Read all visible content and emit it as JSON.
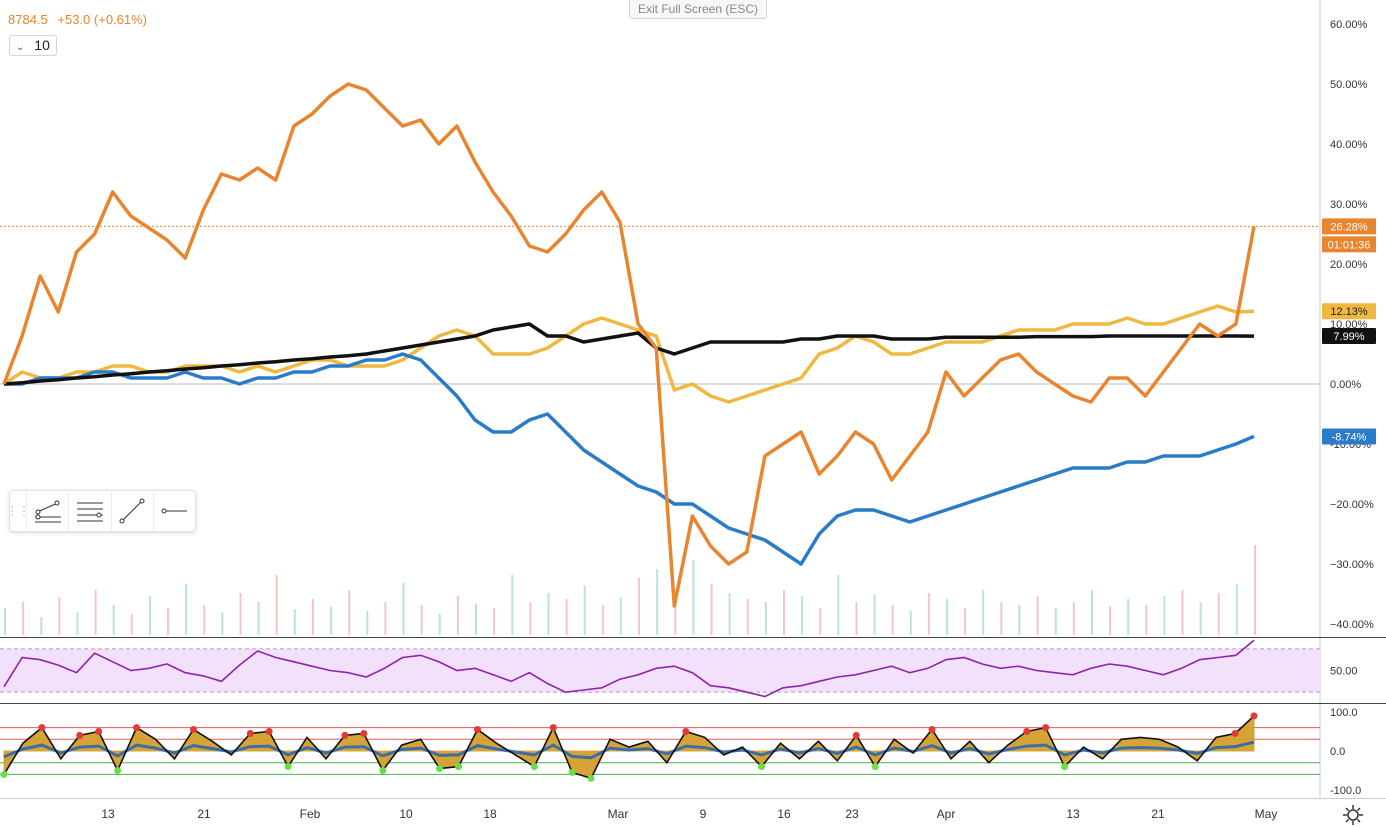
{
  "header": {
    "price": "8784.5",
    "change": "+53.0 (+0.61%)",
    "interval": "10",
    "exit_fullscreen": "Exit Full Screen (ESC)"
  },
  "toolbar": {
    "tools": [
      "multi-line-tool-icon",
      "parallel-lines-icon",
      "trend-line-icon",
      "horizontal-ray-icon"
    ]
  },
  "colors": {
    "orange": "#e8852e",
    "yellow": "#f0b840",
    "blue": "#2a7bc8",
    "black": "#111111",
    "rsi": "#8e24aa",
    "osc_fill": "#d4a02c",
    "osc_blue": "#3b6ea5"
  },
  "chart_data": [
    {
      "type": "line",
      "title": "",
      "x_tick_labels": [
        "13",
        "21",
        "Feb",
        "10",
        "18",
        "Mar",
        "9",
        "16",
        "23",
        "Apr",
        "13",
        "21",
        "May"
      ],
      "y_tick_labels": [
        "60.00%",
        "50.00%",
        "40.00%",
        "30.00%",
        "20.00%",
        "10.00%",
        "0.00%",
        "-10.00%",
        "−20.00%",
        "−30.00%",
        "−40.00%"
      ],
      "ylim": [
        -40,
        60
      ],
      "series": [
        {
          "name": "",
          "color": "orange",
          "last_label": "26.28%",
          "values": [
            0,
            8,
            18,
            12,
            22,
            25,
            32,
            28,
            26,
            24,
            21,
            29,
            35,
            34,
            36,
            34,
            43,
            45,
            48,
            50,
            49,
            46,
            43,
            44,
            40,
            43,
            37,
            32,
            28,
            23,
            22,
            25,
            29,
            32,
            27,
            10,
            6,
            -37,
            -22,
            -27,
            -30,
            -28,
            -12,
            -10,
            -8,
            -15,
            -12,
            -8,
            -10,
            -16,
            -12,
            -8,
            2,
            -2,
            1,
            4,
            5,
            2,
            0,
            -2,
            -3,
            1,
            1,
            -2,
            2,
            6,
            10,
            8,
            10,
            26.28
          ]
        },
        {
          "name": "",
          "color": "yellow",
          "last_label": "12.13%",
          "values": [
            0,
            2,
            1,
            1,
            2,
            2,
            3,
            3,
            2,
            2,
            3,
            3,
            3,
            2,
            3,
            2,
            3,
            4,
            4,
            3,
            3,
            3,
            4,
            6,
            8,
            9,
            8,
            5,
            5,
            5,
            6,
            8,
            10,
            11,
            10,
            9,
            8,
            -1,
            0,
            -2,
            -3,
            -2,
            -1,
            0,
            1,
            5,
            6,
            8,
            7,
            5,
            5,
            6,
            7,
            7,
            7,
            8,
            9,
            9,
            9,
            10,
            10,
            10,
            11,
            10,
            10,
            11,
            12,
            13,
            12,
            12.13
          ]
        },
        {
          "name": "",
          "color": "blue",
          "last_label": "-8.74%",
          "values": [
            0,
            0,
            1,
            1,
            1,
            2,
            2,
            1,
            1,
            1,
            2,
            1,
            1,
            0,
            1,
            1,
            2,
            2,
            3,
            3,
            4,
            4,
            5,
            4,
            1,
            -2,
            -6,
            -8,
            -8,
            -6,
            -5,
            -8,
            -11,
            -13,
            -15,
            -17,
            -18,
            -20,
            -20,
            -22,
            -24,
            -25,
            -26,
            -28,
            -30,
            -25,
            -22,
            -21,
            -21,
            -22,
            -23,
            -22,
            -21,
            -20,
            -19,
            -18,
            -17,
            -16,
            -15,
            -14,
            -14,
            -14,
            -13,
            -13,
            -12,
            -12,
            -12,
            -11,
            -10,
            -8.74
          ]
        },
        {
          "name": "",
          "color": "black",
          "last_label": "7.99%",
          "values": [
            0,
            0.2,
            0.5,
            0.7,
            1,
            1.2,
            1.5,
            1.7,
            2,
            2.2,
            2.5,
            2.7,
            3,
            3.2,
            3.5,
            3.7,
            4,
            4.2,
            4.5,
            4.7,
            5,
            5.5,
            6,
            6.5,
            7,
            7.5,
            8,
            9,
            9.5,
            10,
            8,
            8,
            7,
            7.5,
            8,
            8.5,
            6,
            5,
            6,
            7,
            7,
            7,
            7,
            7,
            7.5,
            7.5,
            8,
            8,
            8,
            7.5,
            7.5,
            7.5,
            7.8,
            7.8,
            7.8,
            7.8,
            7.8,
            7.9,
            7.9,
            7.9,
            7.9,
            8,
            8,
            8,
            8,
            8,
            8,
            8,
            8,
            7.99
          ]
        }
      ],
      "current_price_line": {
        "label": "26.28%",
        "countdown": "01:01:36"
      },
      "volume": [
        18,
        22,
        12,
        25,
        15,
        30,
        20,
        14,
        26,
        18,
        34,
        20,
        15,
        28,
        22,
        40,
        17,
        24,
        19,
        30,
        16,
        22,
        35,
        20,
        14,
        26,
        21,
        18,
        40,
        22,
        28,
        24,
        33,
        20,
        25,
        38,
        44,
        30,
        50,
        34,
        28,
        24,
        22,
        30,
        26,
        18,
        40,
        22,
        27,
        20,
        16,
        28,
        24,
        18,
        30,
        22,
        20,
        26,
        18,
        22,
        30,
        19,
        24,
        20,
        26,
        30,
        22,
        28,
        34,
        60
      ]
    },
    {
      "type": "line",
      "title": "",
      "y_tick_labels": [
        "50.00"
      ],
      "band": [
        30,
        70
      ],
      "ylim": [
        20,
        80
      ],
      "series": [
        {
          "name": "",
          "color": "rsi",
          "values": [
            35,
            62,
            60,
            55,
            48,
            66,
            58,
            50,
            52,
            56,
            48,
            45,
            40,
            55,
            68,
            62,
            58,
            54,
            50,
            48,
            44,
            52,
            62,
            64,
            58,
            50,
            52,
            46,
            40,
            48,
            38,
            30,
            32,
            34,
            42,
            46,
            52,
            54,
            48,
            36,
            34,
            30,
            26,
            34,
            36,
            40,
            44,
            46,
            50,
            54,
            48,
            52,
            60,
            62,
            56,
            52,
            54,
            50,
            48,
            46,
            52,
            56,
            54,
            50,
            46,
            52,
            60,
            62,
            64,
            78
          ]
        }
      ]
    },
    {
      "type": "area",
      "title": "",
      "y_tick_labels": [
        "100.0",
        "0.0",
        "-100.0"
      ],
      "ylim": [
        -100,
        100
      ],
      "levels": [
        60,
        30,
        -30,
        -60
      ],
      "series": [
        {
          "name": "",
          "color": "osc_fill",
          "values": [
            -60,
            20,
            60,
            -20,
            40,
            50,
            -50,
            60,
            30,
            -20,
            55,
            25,
            -10,
            45,
            50,
            -40,
            35,
            -20,
            40,
            45,
            -50,
            15,
            30,
            -45,
            -40,
            55,
            20,
            -10,
            -40,
            60,
            -55,
            -70,
            30,
            10,
            25,
            -30,
            50,
            35,
            -10,
            10,
            -40,
            20,
            -20,
            25,
            -25,
            40,
            -40,
            30,
            -5,
            55,
            -20,
            25,
            -30,
            15,
            50,
            60,
            -40,
            10,
            -20,
            30,
            35,
            30,
            10,
            -25,
            35,
            45,
            90
          ]
        }
      ]
    }
  ]
}
